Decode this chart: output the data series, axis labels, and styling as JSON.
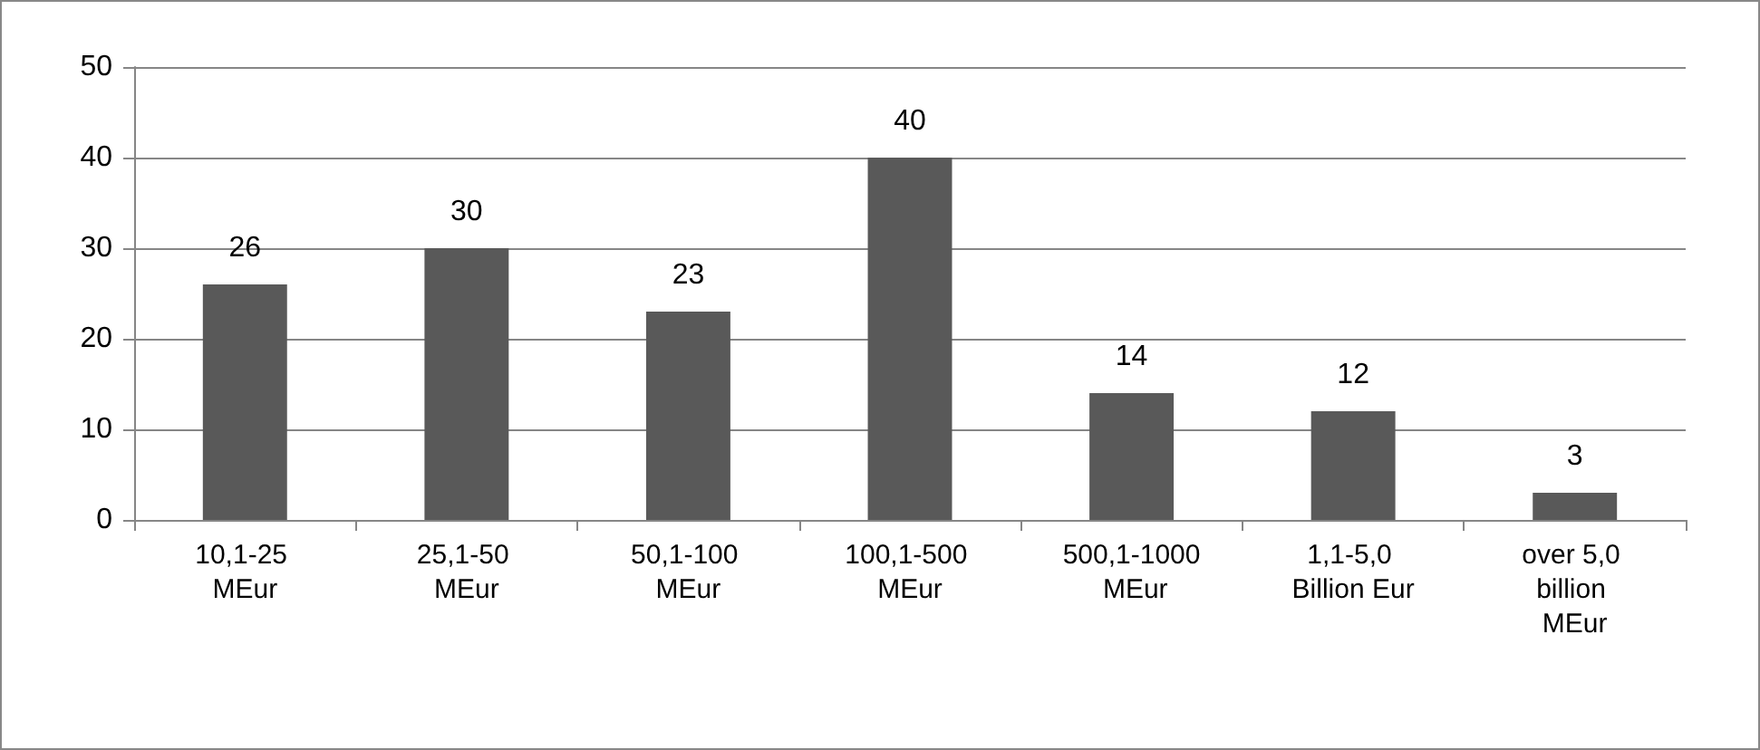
{
  "chart_data": {
    "type": "bar",
    "categories": [
      "10,1-25 MEur",
      "25,1-50 MEur",
      "50,1-100 MEur",
      "100,1-500 MEur",
      "500,1-1000 MEur",
      "1,1-5,0 Billion Eur",
      "over 5,0 billion MEur"
    ],
    "values": [
      26,
      30,
      23,
      40,
      14,
      12,
      3
    ],
    "color": "#595959",
    "ylim": [
      0,
      50
    ],
    "yticks": [
      0,
      10,
      20,
      30,
      40,
      50
    ],
    "grid": "y",
    "data_labels": true
  }
}
